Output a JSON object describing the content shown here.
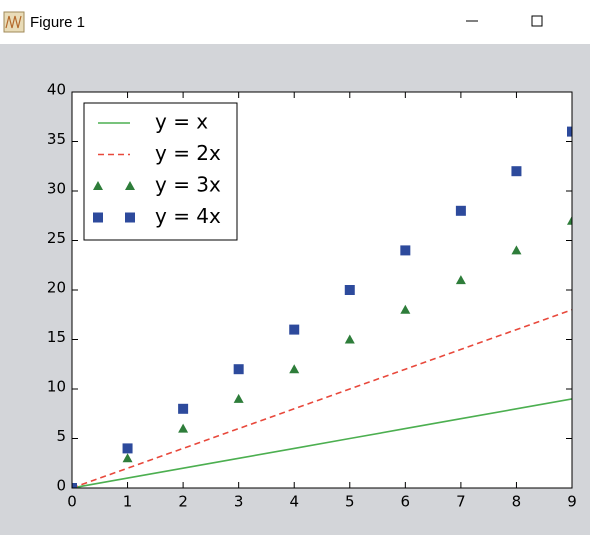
{
  "window": {
    "title": "Figure 1"
  },
  "chart_data": {
    "type": "line",
    "x": [
      0,
      1,
      2,
      3,
      4,
      5,
      6,
      7,
      8,
      9
    ],
    "series": [
      {
        "name": "y = x",
        "color": "#4caf50",
        "linestyle": "solid",
        "values": [
          0,
          1,
          2,
          3,
          4,
          5,
          6,
          7,
          8,
          9
        ]
      },
      {
        "name": "y = 2x",
        "color": "#e8483b",
        "linestyle": "dashed",
        "values": [
          0,
          2,
          4,
          6,
          8,
          10,
          12,
          14,
          16,
          18
        ]
      },
      {
        "name": "y = 3x",
        "color": "#2e7d3a",
        "marker": "triangle",
        "values": [
          0,
          3,
          6,
          9,
          12,
          15,
          18,
          21,
          24,
          27
        ]
      },
      {
        "name": "y = 4x",
        "color": "#2d4a9c",
        "marker": "square",
        "values": [
          0,
          4,
          8,
          12,
          16,
          20,
          24,
          28,
          32,
          36
        ]
      }
    ],
    "xlim": [
      0,
      9
    ],
    "xticks": [
      0,
      1,
      2,
      3,
      4,
      5,
      6,
      7,
      8,
      9
    ],
    "ylim": [
      0,
      40
    ],
    "yticks": [
      0,
      5,
      10,
      15,
      20,
      25,
      30,
      35,
      40
    ],
    "legend": "upper left"
  }
}
